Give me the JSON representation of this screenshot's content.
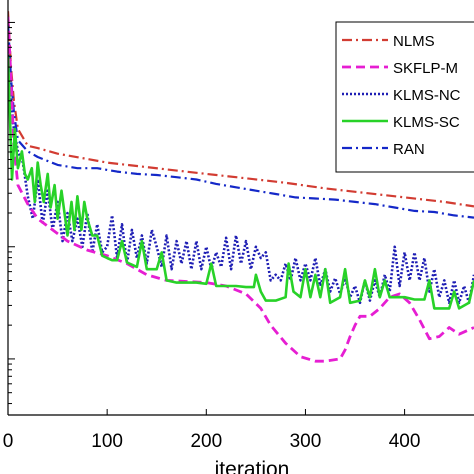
{
  "chart_data": {
    "type": "line",
    "xlabel": "iteration",
    "ylabel": "",
    "title": "",
    "xlim": [
      0,
      470
    ],
    "ylim_log10": [
      -3.5,
      0.2
    ],
    "y_scale": "log",
    "grid": false,
    "legend_position": "top-right",
    "xticks": [
      {
        "value": 0,
        "label": "0"
      },
      {
        "value": 100,
        "label": "100"
      },
      {
        "value": 200,
        "label": "200"
      },
      {
        "value": 300,
        "label": "300"
      },
      {
        "value": 400,
        "label": "400"
      }
    ],
    "series": [
      {
        "name": "NLMS",
        "color": "#d23c32",
        "dash": "dash-dot",
        "log10_values": [
          [
            0,
            0.1
          ],
          [
            3,
            -0.4
          ],
          [
            6,
            -0.7
          ],
          [
            10,
            -0.95
          ],
          [
            20,
            -1.1
          ],
          [
            30,
            -1.12
          ],
          [
            50,
            -1.17
          ],
          [
            75,
            -1.21
          ],
          [
            100,
            -1.25
          ],
          [
            130,
            -1.28
          ],
          [
            160,
            -1.31
          ],
          [
            200,
            -1.35
          ],
          [
            240,
            -1.39
          ],
          [
            280,
            -1.43
          ],
          [
            320,
            -1.48
          ],
          [
            360,
            -1.52
          ],
          [
            400,
            -1.56
          ],
          [
            440,
            -1.6
          ],
          [
            470,
            -1.64
          ]
        ]
      },
      {
        "name": "SKFLP-M",
        "color": "#e61ed2",
        "dash": "dashed",
        "log10_values": [
          [
            0,
            0.05
          ],
          [
            3,
            -0.5
          ],
          [
            6,
            -1.1
          ],
          [
            10,
            -1.45
          ],
          [
            20,
            -1.62
          ],
          [
            30,
            -1.75
          ],
          [
            45,
            -1.85
          ],
          [
            60,
            -1.95
          ],
          [
            80,
            -2.03
          ],
          [
            100,
            -2.08
          ],
          [
            120,
            -2.15
          ],
          [
            140,
            -2.25
          ],
          [
            160,
            -2.3
          ],
          [
            180,
            -2.31
          ],
          [
            200,
            -2.32
          ],
          [
            220,
            -2.35
          ],
          [
            240,
            -2.42
          ],
          [
            255,
            -2.55
          ],
          [
            265,
            -2.7
          ],
          [
            280,
            -2.86
          ],
          [
            295,
            -2.98
          ],
          [
            310,
            -3.02
          ],
          [
            320,
            -3.02
          ],
          [
            335,
            -3.0
          ],
          [
            340,
            -2.92
          ],
          [
            345,
            -2.8
          ],
          [
            350,
            -2.7
          ],
          [
            355,
            -2.62
          ],
          [
            365,
            -2.62
          ],
          [
            375,
            -2.55
          ],
          [
            385,
            -2.45
          ],
          [
            395,
            -2.42
          ],
          [
            405,
            -2.5
          ],
          [
            415,
            -2.65
          ],
          [
            425,
            -2.82
          ],
          [
            435,
            -2.8
          ],
          [
            445,
            -2.72
          ],
          [
            455,
            -2.78
          ],
          [
            470,
            -2.72
          ]
        ]
      },
      {
        "name": "KLMS-NC",
        "color": "#1e1eb4",
        "dash": "dotted",
        "log10_values": [
          [
            0,
            -0.25
          ],
          [
            5,
            -0.9
          ],
          [
            10,
            -1.15
          ],
          [
            15,
            -1.25
          ],
          [
            20,
            -1.55
          ],
          [
            25,
            -1.75
          ],
          [
            30,
            -1.4
          ],
          [
            35,
            -1.8
          ],
          [
            40,
            -1.5
          ],
          [
            45,
            -1.85
          ],
          [
            50,
            -1.6
          ],
          [
            55,
            -1.95
          ],
          [
            60,
            -1.7
          ],
          [
            65,
            -1.95
          ],
          [
            70,
            -1.75
          ],
          [
            75,
            -2.0
          ],
          [
            80,
            -1.7
          ],
          [
            85,
            -2.05
          ],
          [
            90,
            -1.8
          ],
          [
            95,
            -2.05
          ],
          [
            100,
            -2.0
          ],
          [
            105,
            -1.72
          ],
          [
            110,
            -2.1
          ],
          [
            115,
            -1.8
          ],
          [
            120,
            -2.15
          ],
          [
            125,
            -1.85
          ],
          [
            130,
            -2.1
          ],
          [
            135,
            -1.9
          ],
          [
            140,
            -2.15
          ],
          [
            145,
            -1.85
          ],
          [
            150,
            -2.0
          ],
          [
            155,
            -2.18
          ],
          [
            160,
            -1.9
          ],
          [
            165,
            -2.2
          ],
          [
            170,
            -1.95
          ],
          [
            175,
            -2.15
          ],
          [
            180,
            -1.95
          ],
          [
            185,
            -2.2
          ],
          [
            190,
            -1.95
          ],
          [
            195,
            -2.2
          ],
          [
            200,
            -2.0
          ],
          [
            205,
            -2.2
          ],
          [
            210,
            -2.05
          ],
          [
            215,
            -2.18
          ],
          [
            220,
            -1.92
          ],
          [
            225,
            -2.2
          ],
          [
            230,
            -1.9
          ],
          [
            235,
            -2.15
          ],
          [
            240,
            -1.95
          ],
          [
            245,
            -2.2
          ],
          [
            250,
            -2.0
          ],
          [
            255,
            -2.1
          ],
          [
            260,
            -2.05
          ],
          [
            265,
            -2.3
          ],
          [
            270,
            -2.25
          ],
          [
            275,
            -2.3
          ],
          [
            280,
            -2.15
          ],
          [
            285,
            -2.3
          ],
          [
            290,
            -2.1
          ],
          [
            295,
            -2.3
          ],
          [
            300,
            -2.15
          ],
          [
            305,
            -2.3
          ],
          [
            310,
            -2.1
          ],
          [
            315,
            -2.35
          ],
          [
            320,
            -2.2
          ],
          [
            325,
            -2.4
          ],
          [
            330,
            -2.28
          ],
          [
            335,
            -2.42
          ],
          [
            340,
            -2.28
          ],
          [
            345,
            -2.45
          ],
          [
            350,
            -2.35
          ],
          [
            355,
            -2.5
          ],
          [
            360,
            -2.3
          ],
          [
            365,
            -2.48
          ],
          [
            370,
            -2.3
          ],
          [
            375,
            -2.45
          ],
          [
            380,
            -2.25
          ],
          [
            385,
            -2.4
          ],
          [
            390,
            -2.0
          ],
          [
            395,
            -2.35
          ],
          [
            400,
            -2.05
          ],
          [
            405,
            -2.3
          ],
          [
            410,
            -2.05
          ],
          [
            415,
            -2.3
          ],
          [
            420,
            -2.1
          ],
          [
            425,
            -2.4
          ],
          [
            430,
            -2.2
          ],
          [
            435,
            -2.45
          ],
          [
            440,
            -2.3
          ],
          [
            445,
            -2.5
          ],
          [
            450,
            -2.3
          ],
          [
            455,
            -2.5
          ],
          [
            460,
            -2.35
          ],
          [
            465,
            -2.5
          ],
          [
            470,
            -2.25
          ]
        ]
      },
      {
        "name": "KLMS-SC",
        "color": "#28d228",
        "dash": "solid",
        "log10_values": [
          [
            0,
            -0.3
          ],
          [
            4,
            -1.4
          ],
          [
            7,
            -0.95
          ],
          [
            10,
            -1.3
          ],
          [
            14,
            -1.15
          ],
          [
            17,
            -1.35
          ],
          [
            20,
            -1.4
          ],
          [
            24,
            -1.3
          ],
          [
            27,
            -1.6
          ],
          [
            30,
            -1.25
          ],
          [
            33,
            -1.45
          ],
          [
            36,
            -1.6
          ],
          [
            40,
            -1.35
          ],
          [
            43,
            -1.65
          ],
          [
            47,
            -1.45
          ],
          [
            50,
            -1.75
          ],
          [
            54,
            -1.5
          ],
          [
            57,
            -1.7
          ],
          [
            60,
            -1.9
          ],
          [
            64,
            -1.6
          ],
          [
            67,
            -1.85
          ],
          [
            70,
            -1.55
          ],
          [
            74,
            -1.85
          ],
          [
            77,
            -1.6
          ],
          [
            80,
            -1.75
          ],
          [
            85,
            -1.9
          ],
          [
            90,
            -1.9
          ],
          [
            95,
            -2.08
          ],
          [
            100,
            -2.1
          ],
          [
            105,
            -2.12
          ],
          [
            110,
            -2.12
          ],
          [
            115,
            -1.95
          ],
          [
            120,
            -2.14
          ],
          [
            125,
            -2.16
          ],
          [
            130,
            -2.18
          ],
          [
            135,
            -1.95
          ],
          [
            140,
            -2.2
          ],
          [
            150,
            -2.2
          ],
          [
            155,
            -2.05
          ],
          [
            160,
            -2.3
          ],
          [
            170,
            -2.32
          ],
          [
            180,
            -2.32
          ],
          [
            190,
            -2.32
          ],
          [
            200,
            -2.33
          ],
          [
            205,
            -2.15
          ],
          [
            210,
            -2.35
          ],
          [
            220,
            -2.35
          ],
          [
            230,
            -2.35
          ],
          [
            240,
            -2.36
          ],
          [
            248,
            -2.36
          ],
          [
            250,
            -2.25
          ],
          [
            255,
            -2.4
          ],
          [
            260,
            -2.48
          ],
          [
            270,
            -2.48
          ],
          [
            280,
            -2.45
          ],
          [
            283,
            -2.15
          ],
          [
            288,
            -2.4
          ],
          [
            295,
            -2.45
          ],
          [
            300,
            -2.2
          ],
          [
            305,
            -2.45
          ],
          [
            310,
            -2.25
          ],
          [
            315,
            -2.45
          ],
          [
            320,
            -2.2
          ],
          [
            325,
            -2.5
          ],
          [
            335,
            -2.45
          ],
          [
            340,
            -2.2
          ],
          [
            345,
            -2.5
          ],
          [
            355,
            -2.48
          ],
          [
            360,
            -2.3
          ],
          [
            365,
            -2.45
          ],
          [
            370,
            -2.2
          ],
          [
            375,
            -2.45
          ],
          [
            380,
            -2.3
          ],
          [
            385,
            -2.45
          ],
          [
            400,
            -2.45
          ],
          [
            410,
            -2.47
          ],
          [
            420,
            -2.47
          ],
          [
            425,
            -2.3
          ],
          [
            430,
            -2.55
          ],
          [
            445,
            -2.55
          ],
          [
            450,
            -2.4
          ],
          [
            455,
            -2.55
          ],
          [
            465,
            -2.5
          ],
          [
            470,
            -2.3
          ]
        ]
      },
      {
        "name": "RAN",
        "color": "#1428c8",
        "dash": "dash-dot",
        "log10_values": [
          [
            0,
            0.0
          ],
          [
            3,
            -0.5
          ],
          [
            6,
            -0.8
          ],
          [
            10,
            -1.05
          ],
          [
            20,
            -1.15
          ],
          [
            30,
            -1.2
          ],
          [
            50,
            -1.27
          ],
          [
            70,
            -1.3
          ],
          [
            90,
            -1.3
          ],
          [
            110,
            -1.33
          ],
          [
            130,
            -1.35
          ],
          [
            150,
            -1.36
          ],
          [
            170,
            -1.38
          ],
          [
            190,
            -1.4
          ],
          [
            210,
            -1.44
          ],
          [
            230,
            -1.47
          ],
          [
            250,
            -1.5
          ],
          [
            270,
            -1.53
          ],
          [
            290,
            -1.56
          ],
          [
            310,
            -1.57
          ],
          [
            330,
            -1.58
          ],
          [
            350,
            -1.6
          ],
          [
            370,
            -1.62
          ],
          [
            390,
            -1.65
          ],
          [
            410,
            -1.68
          ],
          [
            430,
            -1.69
          ],
          [
            450,
            -1.72
          ],
          [
            470,
            -1.74
          ]
        ]
      }
    ]
  }
}
